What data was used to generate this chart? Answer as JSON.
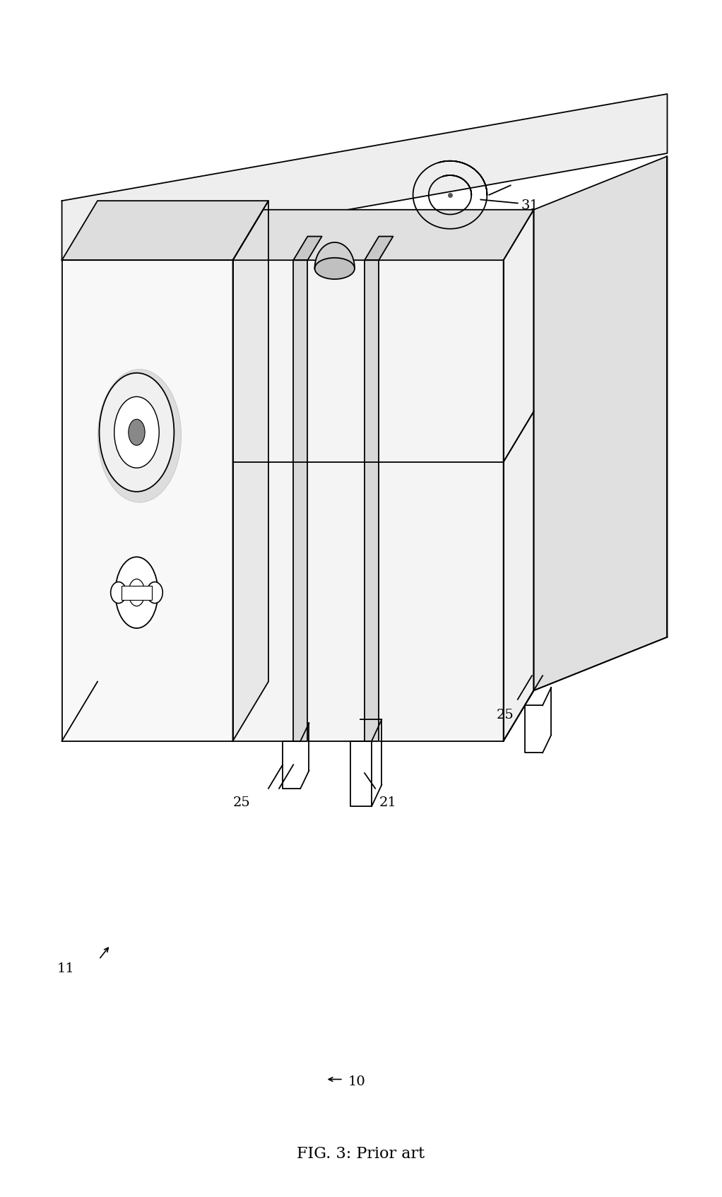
{
  "title": "FIG. 3: Prior art",
  "bg_color": "#ffffff",
  "line_color": "#000000",
  "fig_width": 10.22,
  "fig_height": 16.94
}
